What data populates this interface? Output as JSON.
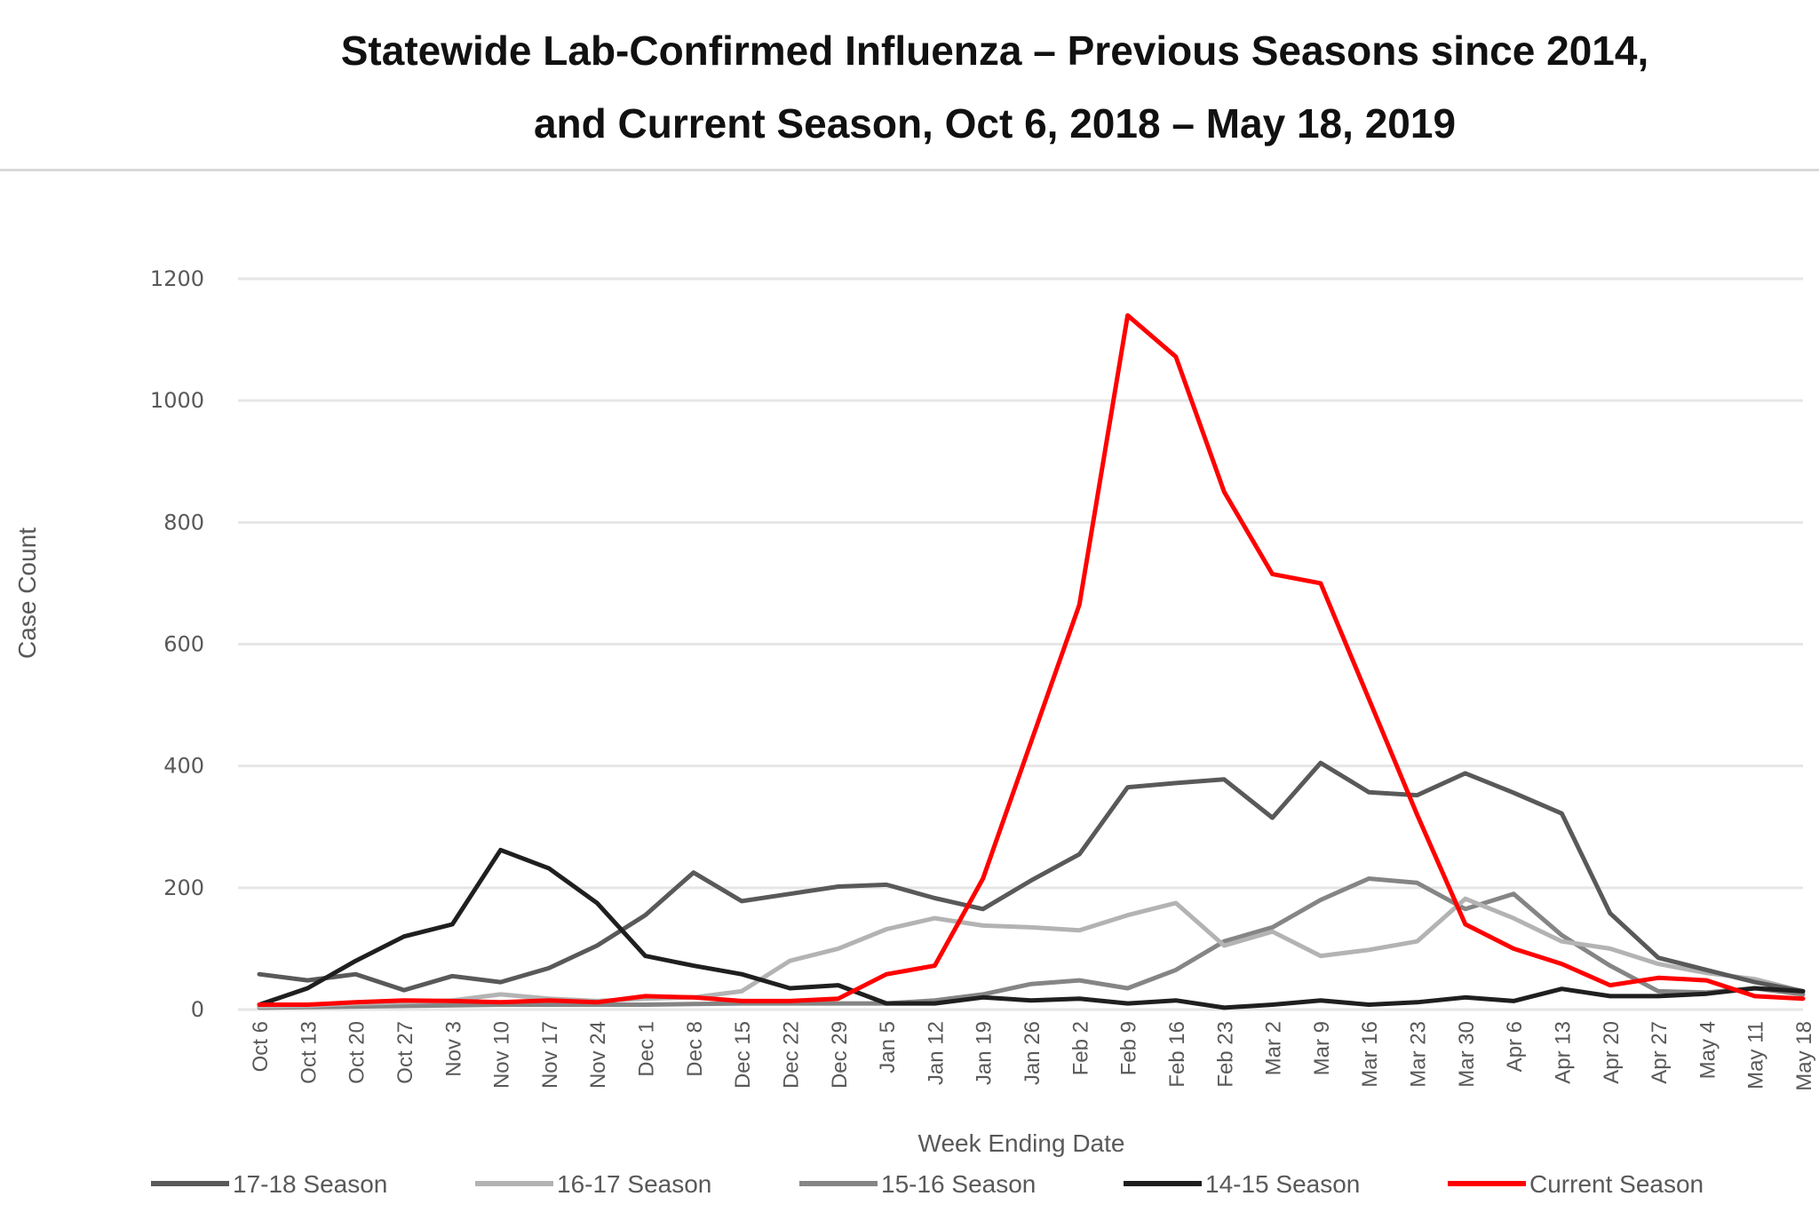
{
  "title": {
    "line1": "Statewide Lab-Confirmed Influenza – Previous Seasons since 2014,",
    "line2": "and Current Season, Oct 6, 2018 – May 18, 2019"
  },
  "chart_data": {
    "type": "line",
    "title": "Statewide Lab-Confirmed Influenza – Previous Seasons since 2014, and Current Season, Oct 6, 2018 – May 18, 2019",
    "xlabel": "Week Ending Date",
    "ylabel": "Case Count",
    "ylim": [
      0,
      1200
    ],
    "yticks": [
      0,
      200,
      400,
      600,
      800,
      1000,
      1200
    ],
    "grid": true,
    "legend_position": "bottom",
    "categories": [
      "Oct 6",
      "Oct 13",
      "Oct 20",
      "Oct 27",
      "Nov 3",
      "Nov 10",
      "Nov 17",
      "Nov 24",
      "Dec 1",
      "Dec 8",
      "Dec 15",
      "Dec 22",
      "Dec 29",
      "Jan 5",
      "Jan 12",
      "Jan 19",
      "Jan 26",
      "Feb 2",
      "Feb 9",
      "Feb 16",
      "Feb 23",
      "Mar 2",
      "Mar 9",
      "Mar 16",
      "Mar 23",
      "Mar 30",
      "Apr 6",
      "Apr 13",
      "Apr 20",
      "Apr 27",
      "May 4",
      "May 11",
      "May 18"
    ],
    "series": [
      {
        "name": "17-18 Season",
        "color": "#595959",
        "values": [
          58,
          48,
          58,
          32,
          55,
          45,
          68,
          105,
          155,
          225,
          178,
          190,
          202,
          205,
          183,
          165,
          212,
          255,
          365,
          372,
          378,
          315,
          405,
          357,
          352,
          388,
          356,
          322,
          158,
          85,
          65,
          45,
          30
        ]
      },
      {
        "name": "16-17 Season",
        "color": "#b3b3b3",
        "values": [
          5,
          6,
          10,
          12,
          15,
          25,
          18,
          14,
          18,
          20,
          30,
          80,
          100,
          132,
          150,
          138,
          135,
          130,
          155,
          175,
          105,
          128,
          88,
          98,
          112,
          182,
          150,
          112,
          100,
          75,
          60,
          50,
          30
        ]
      },
      {
        "name": "15-16 Season",
        "color": "#858585",
        "values": [
          3,
          4,
          5,
          6,
          7,
          8,
          8,
          8,
          8,
          9,
          10,
          10,
          10,
          10,
          15,
          25,
          42,
          48,
          35,
          65,
          112,
          135,
          180,
          215,
          208,
          165,
          190,
          122,
          72,
          30,
          28,
          35,
          25
        ]
      },
      {
        "name": "14-15 Season",
        "color": "#1f1f1f",
        "values": [
          8,
          35,
          80,
          120,
          140,
          262,
          232,
          175,
          88,
          72,
          58,
          35,
          40,
          10,
          10,
          20,
          15,
          18,
          10,
          15,
          3,
          8,
          15,
          8,
          12,
          20,
          14,
          34,
          22,
          22,
          26,
          35,
          30
        ]
      },
      {
        "name": "Current Season",
        "color": "#ff0000",
        "values": [
          8,
          8,
          12,
          15,
          14,
          12,
          15,
          12,
          22,
          20,
          14,
          14,
          18,
          58,
          72,
          215,
          440,
          665,
          1140,
          1072,
          850,
          715,
          700,
          510,
          320,
          140,
          100,
          75,
          40,
          52,
          48,
          22,
          18
        ]
      }
    ]
  }
}
